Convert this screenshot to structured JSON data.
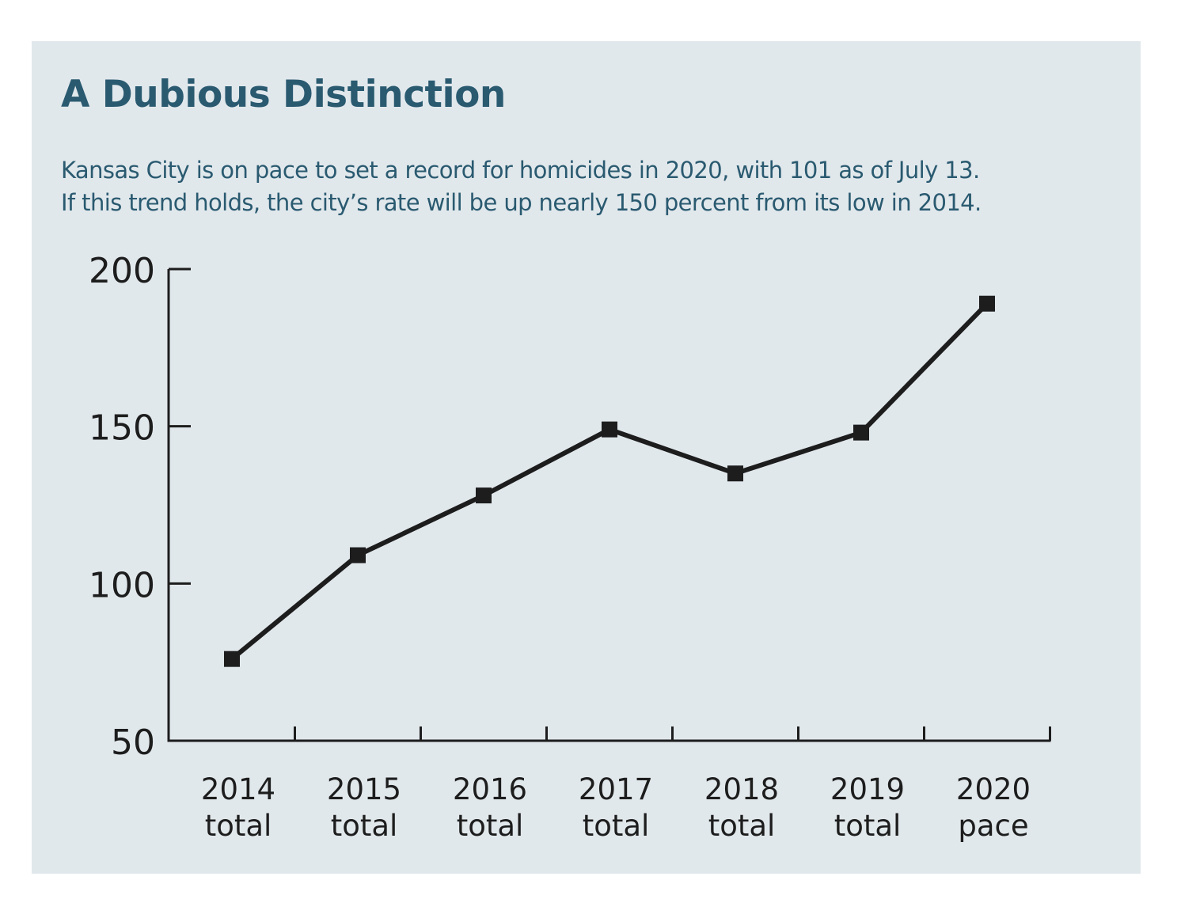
{
  "title": "A Dubious Distinction",
  "subtitle_lines": [
    "Kansas City is on pace to set a record for homicides in 2020, with 101 as of July 13.",
    "If this trend holds, the city’s rate will be up nearly 150 percent from its low in 2014."
  ],
  "colors": {
    "panel_background": "#e1e8ec",
    "title": "#2a5a70",
    "line": "#1d1d1d"
  },
  "chart_data": {
    "type": "line",
    "title": "A Dubious Distinction",
    "categories": [
      [
        "2014",
        "total"
      ],
      [
        "2015",
        "total"
      ],
      [
        "2016",
        "total"
      ],
      [
        "2017",
        "total"
      ],
      [
        "2018",
        "total"
      ],
      [
        "2019",
        "total"
      ],
      [
        "2020",
        "pace"
      ]
    ],
    "series": [
      {
        "values": [
          76,
          109,
          128,
          149,
          135,
          148,
          189
        ]
      }
    ],
    "ylim": [
      50,
      200
    ],
    "yticks": [
      50,
      100,
      150,
      200
    ],
    "grid": false,
    "legend": "none",
    "marker": "square"
  }
}
